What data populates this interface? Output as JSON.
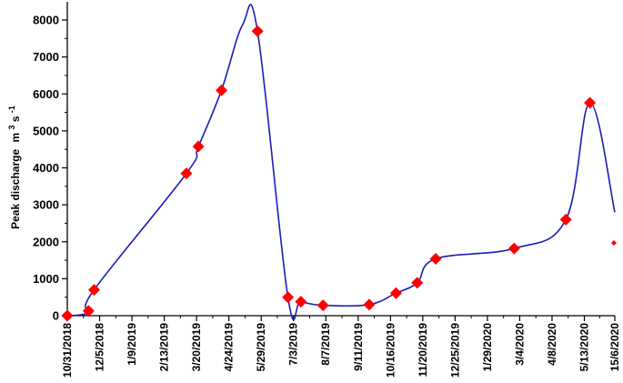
{
  "chart_data": {
    "type": "line",
    "title": "",
    "xlabel": "",
    "ylabel": "Peak discharge",
    "ylabel_unit": "m3 s-1",
    "ylabel_unit_parts": [
      "m",
      "3",
      " s",
      "-1"
    ],
    "ylim": [
      0,
      8000
    ],
    "y_ticks": [
      0,
      1000,
      2000,
      3000,
      4000,
      5000,
      6000,
      7000,
      8000
    ],
    "xlim": [
      "2018-10-31",
      "2020-06-15"
    ],
    "x_ticks": [
      {
        "date": "2018-10-31",
        "label": "10/31/2018"
      },
      {
        "date": "2018-12-05",
        "label": "12/5/2018"
      },
      {
        "date": "2019-01-09",
        "label": "1/9/2019"
      },
      {
        "date": "2019-02-13",
        "label": "2/13/2019"
      },
      {
        "date": "2019-03-20",
        "label": "3/20/2019"
      },
      {
        "date": "2019-04-24",
        "label": "4/24/2019"
      },
      {
        "date": "2019-05-29",
        "label": "5/29/2019"
      },
      {
        "date": "2019-07-03",
        "label": "7/3/2019"
      },
      {
        "date": "2019-08-07",
        "label": "8/7/2019"
      },
      {
        "date": "2019-09-11",
        "label": "9/11/2019"
      },
      {
        "date": "2019-10-16",
        "label": "10/16/2019"
      },
      {
        "date": "2019-11-20",
        "label": "11/20/2019"
      },
      {
        "date": "2019-12-25",
        "label": "12/25/2019"
      },
      {
        "date": "2020-01-29",
        "label": "1/29/2020"
      },
      {
        "date": "2020-03-04",
        "label": "3/4/2020"
      },
      {
        "date": "2020-04-08",
        "label": "4/8/2020"
      },
      {
        "date": "2020-05-13",
        "label": "5/13/2020"
      },
      {
        "date": "2020-06-15",
        "label": "15/6/2020"
      }
    ],
    "series": [
      {
        "name": "",
        "marker": "diamond",
        "points": [
          {
            "x": "2018-10-31",
            "y": 0
          },
          {
            "x": "2018-11-23",
            "y": 130
          },
          {
            "x": "2018-11-29",
            "y": 700
          },
          {
            "x": "2019-03-09",
            "y": 3850
          },
          {
            "x": "2019-03-22",
            "y": 4580
          },
          {
            "x": "2019-04-16",
            "y": 6100
          },
          {
            "x": "2019-05-25",
            "y": 7700
          },
          {
            "x": "2019-06-27",
            "y": 500
          },
          {
            "x": "2019-07-11",
            "y": 380
          },
          {
            "x": "2019-08-04",
            "y": 280
          },
          {
            "x": "2019-09-23",
            "y": 300
          },
          {
            "x": "2019-10-22",
            "y": 610
          },
          {
            "x": "2019-11-14",
            "y": 890
          },
          {
            "x": "2019-12-04",
            "y": 1540
          },
          {
            "x": "2020-02-27",
            "y": 1820
          },
          {
            "x": "2020-04-23",
            "y": 2600
          },
          {
            "x": "2020-05-19",
            "y": 5760
          },
          {
            "x": "2020-06-14",
            "y": 1970
          }
        ],
        "curve": [
          {
            "x": "2018-10-31",
            "y": 0
          },
          {
            "x": "2018-11-13",
            "y": 20
          },
          {
            "x": "2018-11-23",
            "y": 130
          },
          {
            "x": "2018-11-29",
            "y": 700
          },
          {
            "x": "2019-03-09",
            "y": 3850
          },
          {
            "x": "2019-03-22",
            "y": 4580
          },
          {
            "x": "2019-04-16",
            "y": 6100
          },
          {
            "x": "2019-05-09",
            "y": 7880
          },
          {
            "x": "2019-05-25",
            "y": 7700
          },
          {
            "x": "2019-06-27",
            "y": 500
          },
          {
            "x": "2019-07-11",
            "y": 380
          },
          {
            "x": "2019-08-04",
            "y": 280
          },
          {
            "x": "2019-09-23",
            "y": 300
          },
          {
            "x": "2019-10-22",
            "y": 610
          },
          {
            "x": "2019-11-14",
            "y": 890
          },
          {
            "x": "2019-12-04",
            "y": 1540
          },
          {
            "x": "2020-02-27",
            "y": 1820
          },
          {
            "x": "2020-04-23",
            "y": 2600
          },
          {
            "x": "2020-05-19",
            "y": 5760
          },
          {
            "x": "2020-06-15",
            "y": 2800
          }
        ]
      }
    ],
    "grid": false,
    "legend": "none",
    "colors": {
      "line": "#1c1cb4",
      "marker": "#ff0000",
      "axis": "#000000"
    }
  }
}
